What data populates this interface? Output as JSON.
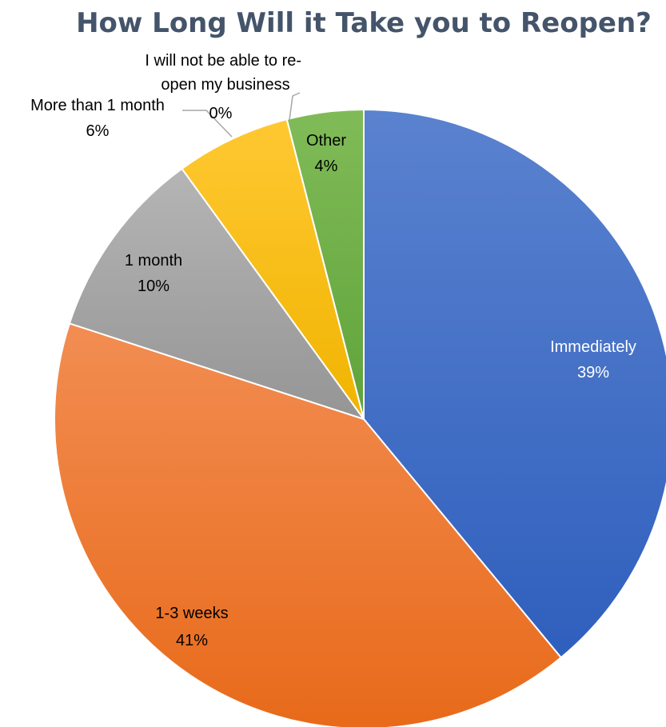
{
  "chart_data": {
    "type": "pie",
    "title": "How Long Will it Take you to Reopen?",
    "slices": [
      {
        "label": "Immediately",
        "value": 39,
        "percent": "39%",
        "color": "#4472c4",
        "label_color": "#ffffff"
      },
      {
        "label": "1-3 weeks",
        "value": 41,
        "percent": "41%",
        "color": "#ed7d31",
        "label_color": "#000000"
      },
      {
        "label": "1 month",
        "value": 10,
        "percent": "10%",
        "color": "#a5a5a5",
        "label_color": "#000000"
      },
      {
        "label": "More than 1 month",
        "value": 6,
        "percent": "6%",
        "color": "#ffc000",
        "label_color": "#000000"
      },
      {
        "label": "I will not be able to re-open my business",
        "value": 0,
        "percent": "0%",
        "color": "#5b9bd5",
        "label_color": "#000000"
      },
      {
        "label": "Other",
        "value": 4,
        "percent": "4%",
        "color": "#70ad47",
        "label_color": "#000000"
      }
    ],
    "start_angle": "12 o'clock",
    "direction": "clockwise",
    "legend": "none"
  }
}
